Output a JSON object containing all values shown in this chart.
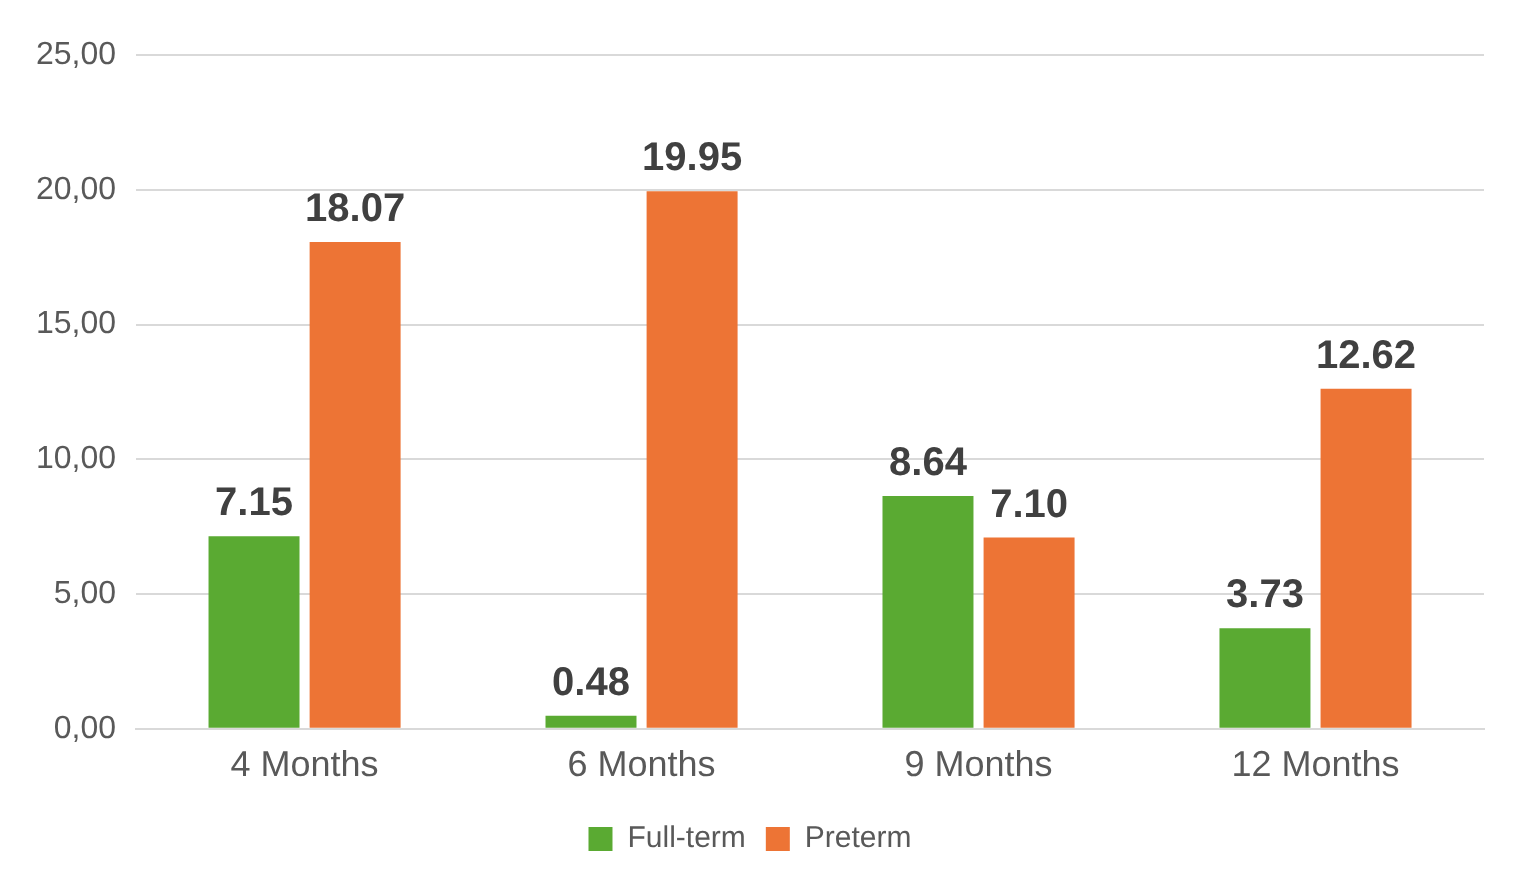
{
  "chart_data": {
    "type": "bar",
    "categories": [
      "4 Months",
      "6 Months",
      "9 Months",
      "12 Months"
    ],
    "series": [
      {
        "name": "Full-term",
        "color": "#5aaa32",
        "values": [
          7.15,
          0.48,
          8.64,
          3.73
        ],
        "value_labels": [
          "7.15",
          "0.48",
          "8.64",
          "3.73"
        ]
      },
      {
        "name": "Preterm",
        "color": "#ed7435",
        "values": [
          18.07,
          19.95,
          7.1,
          12.62
        ],
        "value_labels": [
          "18.07",
          "19.95",
          "7.10",
          "12.62"
        ]
      }
    ],
    "ylim": [
      0,
      25
    ],
    "yticks": [
      {
        "value": 0,
        "label": "0,00"
      },
      {
        "value": 5,
        "label": "5,00"
      },
      {
        "value": 10,
        "label": "10,00"
      },
      {
        "value": 15,
        "label": "15,00"
      },
      {
        "value": 20,
        "label": "20,00"
      },
      {
        "value": 25,
        "label": "25,00"
      }
    ],
    "grid": "y",
    "legend": "bottom"
  }
}
